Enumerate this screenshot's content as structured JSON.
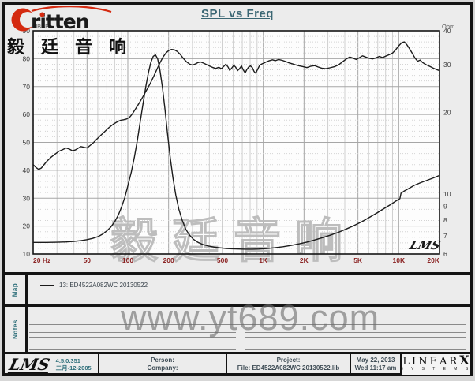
{
  "title": "SPL vs Freq",
  "logo": {
    "brand": "ritten",
    "chinese": "毅廷音响"
  },
  "chart_data": {
    "type": "line",
    "title": "SPL vs Freq",
    "x_axis": {
      "scale": "log",
      "range": [
        20,
        20000
      ],
      "ticks": [
        [
          20,
          "20 Hz"
        ],
        [
          50,
          "50"
        ],
        [
          100,
          "100"
        ],
        [
          200,
          "200"
        ],
        [
          500,
          "500"
        ],
        [
          1000,
          "1K"
        ],
        [
          2000,
          "2K"
        ],
        [
          5000,
          "5K"
        ],
        [
          10000,
          "10K"
        ],
        [
          20000,
          "20K"
        ]
      ]
    },
    "y_left": {
      "label": "dBSPL",
      "scale": "linear",
      "range": [
        10,
        90
      ],
      "ticks": [
        90,
        80,
        70,
        60,
        50,
        40,
        30,
        20,
        10
      ]
    },
    "y_right": {
      "label": "Ohm",
      "scale": "log",
      "range": [
        6,
        40
      ],
      "ticks": [
        40,
        30,
        20,
        10,
        9,
        8,
        7,
        6
      ]
    },
    "grid": true,
    "inplot_logo": "LMS",
    "watermark": "毅廷音响",
    "series": [
      {
        "name": "SPL 13: ED4522A082WC 20130522",
        "axis": "left",
        "points": [
          [
            20,
            42
          ],
          [
            21,
            41
          ],
          [
            22,
            40.3
          ],
          [
            23,
            40.8
          ],
          [
            25,
            43
          ],
          [
            27,
            44.6
          ],
          [
            29,
            45.8
          ],
          [
            31,
            46.8
          ],
          [
            33,
            47.4
          ],
          [
            35,
            48
          ],
          [
            37,
            47.6
          ],
          [
            39,
            47
          ],
          [
            41,
            47.3
          ],
          [
            43,
            47.9
          ],
          [
            45,
            48.5
          ],
          [
            48,
            48.2
          ],
          [
            50,
            48
          ],
          [
            53,
            49
          ],
          [
            56,
            50
          ],
          [
            60,
            51.5
          ],
          [
            64,
            52.8
          ],
          [
            68,
            54
          ],
          [
            73,
            55.4
          ],
          [
            78,
            56.5
          ],
          [
            83,
            57.3
          ],
          [
            88,
            57.9
          ],
          [
            93,
            58.1
          ],
          [
            98,
            58.4
          ],
          [
            103,
            59
          ],
          [
            108,
            60.2
          ],
          [
            114,
            62
          ],
          [
            121,
            64
          ],
          [
            129,
            66.3
          ],
          [
            137,
            68.6
          ],
          [
            146,
            71
          ],
          [
            155,
            73.6
          ],
          [
            164,
            76.2
          ],
          [
            173,
            78.6
          ],
          [
            182,
            80.6
          ],
          [
            191,
            82
          ],
          [
            200,
            82.9
          ],
          [
            210,
            83.3
          ],
          [
            220,
            83.2
          ],
          [
            232,
            82.6
          ],
          [
            245,
            81.4
          ],
          [
            258,
            80
          ],
          [
            272,
            78.8
          ],
          [
            287,
            78
          ],
          [
            300,
            77.7
          ],
          [
            315,
            78.1
          ],
          [
            330,
            78.6
          ],
          [
            345,
            78.8
          ],
          [
            362,
            78.4
          ],
          [
            380,
            77.9
          ],
          [
            400,
            77.4
          ],
          [
            420,
            76.9
          ],
          [
            445,
            76.5
          ],
          [
            470,
            76.9
          ],
          [
            490,
            76.4
          ],
          [
            510,
            77.2
          ],
          [
            530,
            78
          ],
          [
            550,
            77
          ],
          [
            565,
            75.8
          ],
          [
            585,
            76.6
          ],
          [
            605,
            77.6
          ],
          [
            625,
            77
          ],
          [
            645,
            75.7
          ],
          [
            665,
            76.3
          ],
          [
            690,
            77.4
          ],
          [
            710,
            76.1
          ],
          [
            735,
            74.9
          ],
          [
            755,
            76
          ],
          [
            780,
            77
          ],
          [
            805,
            77.4
          ],
          [
            830,
            76.8
          ],
          [
            855,
            75.4
          ],
          [
            880,
            74.8
          ],
          [
            910,
            76.2
          ],
          [
            940,
            77.6
          ],
          [
            975,
            78.1
          ],
          [
            1010,
            78.4
          ],
          [
            1060,
            78.9
          ],
          [
            1110,
            79.3
          ],
          [
            1170,
            79.6
          ],
          [
            1230,
            79.3
          ],
          [
            1300,
            79.7
          ],
          [
            1380,
            79.4
          ],
          [
            1460,
            79
          ],
          [
            1550,
            78.5
          ],
          [
            1650,
            78.1
          ],
          [
            1750,
            77.7
          ],
          [
            1850,
            77.4
          ],
          [
            1950,
            77.2
          ],
          [
            2100,
            76.8
          ],
          [
            2250,
            77.3
          ],
          [
            2400,
            77.5
          ],
          [
            2550,
            77
          ],
          [
            2700,
            76.6
          ],
          [
            2900,
            76.4
          ],
          [
            3100,
            76.7
          ],
          [
            3350,
            77.1
          ],
          [
            3600,
            77.8
          ],
          [
            3850,
            78.9
          ],
          [
            4100,
            79.9
          ],
          [
            4350,
            80.6
          ],
          [
            4600,
            80.2
          ],
          [
            4850,
            79.7
          ],
          [
            5100,
            80.3
          ],
          [
            5400,
            81
          ],
          [
            5700,
            80.6
          ],
          [
            6000,
            80.2
          ],
          [
            6400,
            79.9
          ],
          [
            6800,
            80.3
          ],
          [
            7200,
            80.8
          ],
          [
            7600,
            80.4
          ],
          [
            8000,
            80.9
          ],
          [
            8500,
            81.4
          ],
          [
            9000,
            82
          ],
          [
            9500,
            83.2
          ],
          [
            10000,
            84.6
          ],
          [
            10500,
            85.7
          ],
          [
            11000,
            86
          ],
          [
            11500,
            85
          ],
          [
            12000,
            83.6
          ],
          [
            12600,
            81.9
          ],
          [
            13200,
            80.2
          ],
          [
            13800,
            79.1
          ],
          [
            14400,
            79.5
          ],
          [
            15000,
            78.6
          ],
          [
            16000,
            77.8
          ],
          [
            17000,
            77.2
          ],
          [
            18000,
            76.6
          ],
          [
            19000,
            76.1
          ],
          [
            20000,
            75.7
          ]
        ]
      },
      {
        "name": "Impedance 13: ED4522A082WC 20130522",
        "axis": "right",
        "points": [
          [
            20,
            6.62
          ],
          [
            25,
            6.62
          ],
          [
            30,
            6.63
          ],
          [
            35,
            6.65
          ],
          [
            40,
            6.68
          ],
          [
            45,
            6.72
          ],
          [
            50,
            6.78
          ],
          [
            55,
            6.85
          ],
          [
            60,
            6.95
          ],
          [
            65,
            7.1
          ],
          [
            70,
            7.3
          ],
          [
            75,
            7.55
          ],
          [
            80,
            7.9
          ],
          [
            85,
            8.35
          ],
          [
            90,
            8.95
          ],
          [
            95,
            9.7
          ],
          [
            100,
            10.7
          ],
          [
            106,
            12
          ],
          [
            112,
            13.7
          ],
          [
            118,
            15.9
          ],
          [
            124,
            18.7
          ],
          [
            130,
            21.8
          ],
          [
            136,
            25
          ],
          [
            142,
            28
          ],
          [
            148,
            30.6
          ],
          [
            154,
            32.2
          ],
          [
            160,
            32.6
          ],
          [
            166,
            31.5
          ],
          [
            172,
            29
          ],
          [
            180,
            24.8
          ],
          [
            188,
            20.5
          ],
          [
            196,
            16.8
          ],
          [
            205,
            13.8
          ],
          [
            215,
            11.5
          ],
          [
            226,
            9.9
          ],
          [
            238,
            8.8
          ],
          [
            252,
            8
          ],
          [
            268,
            7.4
          ],
          [
            285,
            7.05
          ],
          [
            305,
            6.8
          ],
          [
            330,
            6.62
          ],
          [
            360,
            6.5
          ],
          [
            395,
            6.42
          ],
          [
            435,
            6.36
          ],
          [
            480,
            6.32
          ],
          [
            530,
            6.29
          ],
          [
            590,
            6.27
          ],
          [
            660,
            6.26
          ],
          [
            740,
            6.25
          ],
          [
            830,
            6.25
          ],
          [
            930,
            6.26
          ],
          [
            1050,
            6.28
          ],
          [
            1200,
            6.32
          ],
          [
            1400,
            6.38
          ],
          [
            1600,
            6.45
          ],
          [
            1850,
            6.54
          ],
          [
            2100,
            6.64
          ],
          [
            2400,
            6.76
          ],
          [
            2750,
            6.9
          ],
          [
            3150,
            7.05
          ],
          [
            3600,
            7.22
          ],
          [
            4100,
            7.42
          ],
          [
            4700,
            7.65
          ],
          [
            5400,
            7.92
          ],
          [
            6100,
            8.2
          ],
          [
            6900,
            8.5
          ],
          [
            7700,
            8.8
          ],
          [
            8600,
            9.1
          ],
          [
            9500,
            9.4
          ],
          [
            10000,
            9.55
          ],
          [
            10200,
            9.6
          ],
          [
            10400,
            10.05
          ],
          [
            11000,
            10.25
          ],
          [
            12000,
            10.5
          ],
          [
            13000,
            10.75
          ],
          [
            14500,
            11
          ],
          [
            16000,
            11.2
          ],
          [
            18000,
            11.45
          ],
          [
            20000,
            11.7
          ]
        ]
      }
    ]
  },
  "map": {
    "label": "Map",
    "legend": "13: ED4522A082WC   20130522"
  },
  "notes": {
    "label": "Notes",
    "watermark": "www.yt689.com"
  },
  "footer": {
    "lms_logo": "LMS",
    "version": "4.5.0.351",
    "version_date": "二月-12-2005",
    "person_label": "Person:",
    "company_label": "Company:",
    "project_label": "Project:",
    "file_label": "File: ED4522A082WC  20130522.lib",
    "date": "May 22, 2013",
    "time": "Wed 11:17 am",
    "brand_linear": "LINEAR",
    "brand_x": "X",
    "brand_systems": "S Y S T E M S"
  },
  "colors": {
    "title": "#3a6673",
    "x_labels": "#8b2424",
    "y_labels": "#3c3c3c",
    "accent_teal": "#2e6f7a",
    "curve": "#1c1c1c",
    "logo_red": "#d42a10"
  }
}
